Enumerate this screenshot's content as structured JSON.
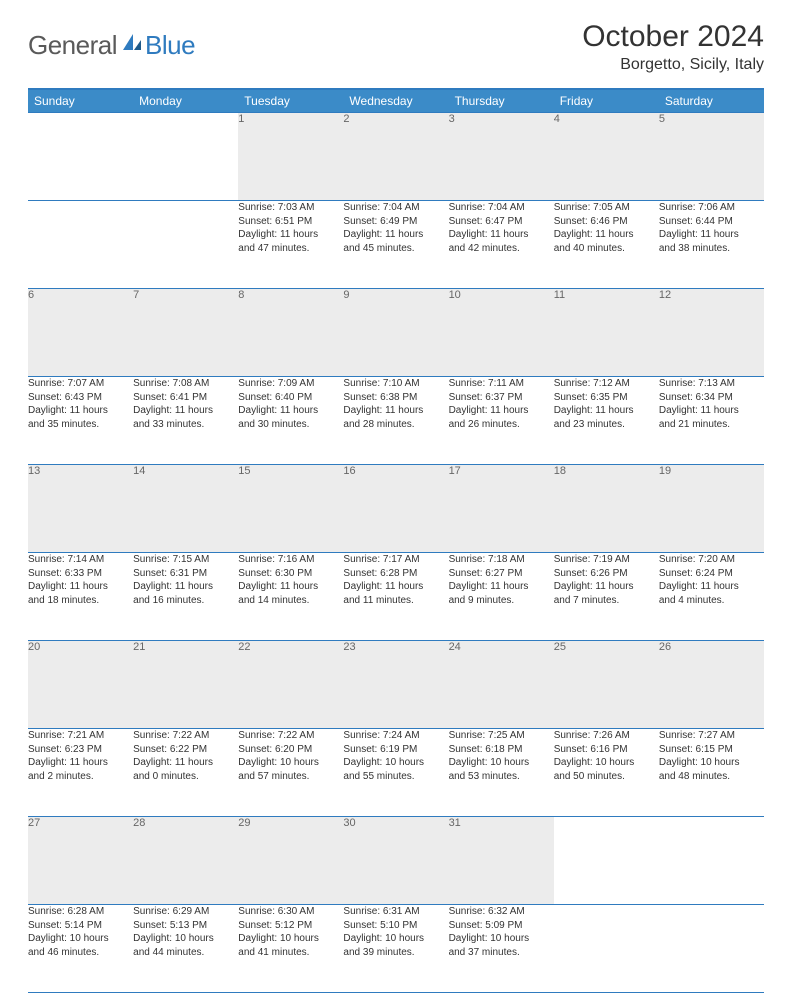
{
  "logo": {
    "general": "General",
    "blue": "Blue"
  },
  "title": "October 2024",
  "location": "Borgetto, Sicily, Italy",
  "colors": {
    "header_bg": "#3b8bc8",
    "header_border": "#2f7bbf",
    "daynum_bg": "#ececec",
    "text": "#333333",
    "logo_gray": "#5a5a5a",
    "logo_blue": "#2f7bbf"
  },
  "dayHeaders": [
    "Sunday",
    "Monday",
    "Tuesday",
    "Wednesday",
    "Thursday",
    "Friday",
    "Saturday"
  ],
  "weeks": [
    [
      null,
      null,
      {
        "n": "1",
        "sr": "Sunrise: 7:03 AM",
        "ss": "Sunset: 6:51 PM",
        "dl1": "Daylight: 11 hours",
        "dl2": "and 47 minutes."
      },
      {
        "n": "2",
        "sr": "Sunrise: 7:04 AM",
        "ss": "Sunset: 6:49 PM",
        "dl1": "Daylight: 11 hours",
        "dl2": "and 45 minutes."
      },
      {
        "n": "3",
        "sr": "Sunrise: 7:04 AM",
        "ss": "Sunset: 6:47 PM",
        "dl1": "Daylight: 11 hours",
        "dl2": "and 42 minutes."
      },
      {
        "n": "4",
        "sr": "Sunrise: 7:05 AM",
        "ss": "Sunset: 6:46 PM",
        "dl1": "Daylight: 11 hours",
        "dl2": "and 40 minutes."
      },
      {
        "n": "5",
        "sr": "Sunrise: 7:06 AM",
        "ss": "Sunset: 6:44 PM",
        "dl1": "Daylight: 11 hours",
        "dl2": "and 38 minutes."
      }
    ],
    [
      {
        "n": "6",
        "sr": "Sunrise: 7:07 AM",
        "ss": "Sunset: 6:43 PM",
        "dl1": "Daylight: 11 hours",
        "dl2": "and 35 minutes."
      },
      {
        "n": "7",
        "sr": "Sunrise: 7:08 AM",
        "ss": "Sunset: 6:41 PM",
        "dl1": "Daylight: 11 hours",
        "dl2": "and 33 minutes."
      },
      {
        "n": "8",
        "sr": "Sunrise: 7:09 AM",
        "ss": "Sunset: 6:40 PM",
        "dl1": "Daylight: 11 hours",
        "dl2": "and 30 minutes."
      },
      {
        "n": "9",
        "sr": "Sunrise: 7:10 AM",
        "ss": "Sunset: 6:38 PM",
        "dl1": "Daylight: 11 hours",
        "dl2": "and 28 minutes."
      },
      {
        "n": "10",
        "sr": "Sunrise: 7:11 AM",
        "ss": "Sunset: 6:37 PM",
        "dl1": "Daylight: 11 hours",
        "dl2": "and 26 minutes."
      },
      {
        "n": "11",
        "sr": "Sunrise: 7:12 AM",
        "ss": "Sunset: 6:35 PM",
        "dl1": "Daylight: 11 hours",
        "dl2": "and 23 minutes."
      },
      {
        "n": "12",
        "sr": "Sunrise: 7:13 AM",
        "ss": "Sunset: 6:34 PM",
        "dl1": "Daylight: 11 hours",
        "dl2": "and 21 minutes."
      }
    ],
    [
      {
        "n": "13",
        "sr": "Sunrise: 7:14 AM",
        "ss": "Sunset: 6:33 PM",
        "dl1": "Daylight: 11 hours",
        "dl2": "and 18 minutes."
      },
      {
        "n": "14",
        "sr": "Sunrise: 7:15 AM",
        "ss": "Sunset: 6:31 PM",
        "dl1": "Daylight: 11 hours",
        "dl2": "and 16 minutes."
      },
      {
        "n": "15",
        "sr": "Sunrise: 7:16 AM",
        "ss": "Sunset: 6:30 PM",
        "dl1": "Daylight: 11 hours",
        "dl2": "and 14 minutes."
      },
      {
        "n": "16",
        "sr": "Sunrise: 7:17 AM",
        "ss": "Sunset: 6:28 PM",
        "dl1": "Daylight: 11 hours",
        "dl2": "and 11 minutes."
      },
      {
        "n": "17",
        "sr": "Sunrise: 7:18 AM",
        "ss": "Sunset: 6:27 PM",
        "dl1": "Daylight: 11 hours",
        "dl2": "and 9 minutes."
      },
      {
        "n": "18",
        "sr": "Sunrise: 7:19 AM",
        "ss": "Sunset: 6:26 PM",
        "dl1": "Daylight: 11 hours",
        "dl2": "and 7 minutes."
      },
      {
        "n": "19",
        "sr": "Sunrise: 7:20 AM",
        "ss": "Sunset: 6:24 PM",
        "dl1": "Daylight: 11 hours",
        "dl2": "and 4 minutes."
      }
    ],
    [
      {
        "n": "20",
        "sr": "Sunrise: 7:21 AM",
        "ss": "Sunset: 6:23 PM",
        "dl1": "Daylight: 11 hours",
        "dl2": "and 2 minutes."
      },
      {
        "n": "21",
        "sr": "Sunrise: 7:22 AM",
        "ss": "Sunset: 6:22 PM",
        "dl1": "Daylight: 11 hours",
        "dl2": "and 0 minutes."
      },
      {
        "n": "22",
        "sr": "Sunrise: 7:22 AM",
        "ss": "Sunset: 6:20 PM",
        "dl1": "Daylight: 10 hours",
        "dl2": "and 57 minutes."
      },
      {
        "n": "23",
        "sr": "Sunrise: 7:24 AM",
        "ss": "Sunset: 6:19 PM",
        "dl1": "Daylight: 10 hours",
        "dl2": "and 55 minutes."
      },
      {
        "n": "24",
        "sr": "Sunrise: 7:25 AM",
        "ss": "Sunset: 6:18 PM",
        "dl1": "Daylight: 10 hours",
        "dl2": "and 53 minutes."
      },
      {
        "n": "25",
        "sr": "Sunrise: 7:26 AM",
        "ss": "Sunset: 6:16 PM",
        "dl1": "Daylight: 10 hours",
        "dl2": "and 50 minutes."
      },
      {
        "n": "26",
        "sr": "Sunrise: 7:27 AM",
        "ss": "Sunset: 6:15 PM",
        "dl1": "Daylight: 10 hours",
        "dl2": "and 48 minutes."
      }
    ],
    [
      {
        "n": "27",
        "sr": "Sunrise: 6:28 AM",
        "ss": "Sunset: 5:14 PM",
        "dl1": "Daylight: 10 hours",
        "dl2": "and 46 minutes."
      },
      {
        "n": "28",
        "sr": "Sunrise: 6:29 AM",
        "ss": "Sunset: 5:13 PM",
        "dl1": "Daylight: 10 hours",
        "dl2": "and 44 minutes."
      },
      {
        "n": "29",
        "sr": "Sunrise: 6:30 AM",
        "ss": "Sunset: 5:12 PM",
        "dl1": "Daylight: 10 hours",
        "dl2": "and 41 minutes."
      },
      {
        "n": "30",
        "sr": "Sunrise: 6:31 AM",
        "ss": "Sunset: 5:10 PM",
        "dl1": "Daylight: 10 hours",
        "dl2": "and 39 minutes."
      },
      {
        "n": "31",
        "sr": "Sunrise: 6:32 AM",
        "ss": "Sunset: 5:09 PM",
        "dl1": "Daylight: 10 hours",
        "dl2": "and 37 minutes."
      },
      null,
      null
    ]
  ]
}
